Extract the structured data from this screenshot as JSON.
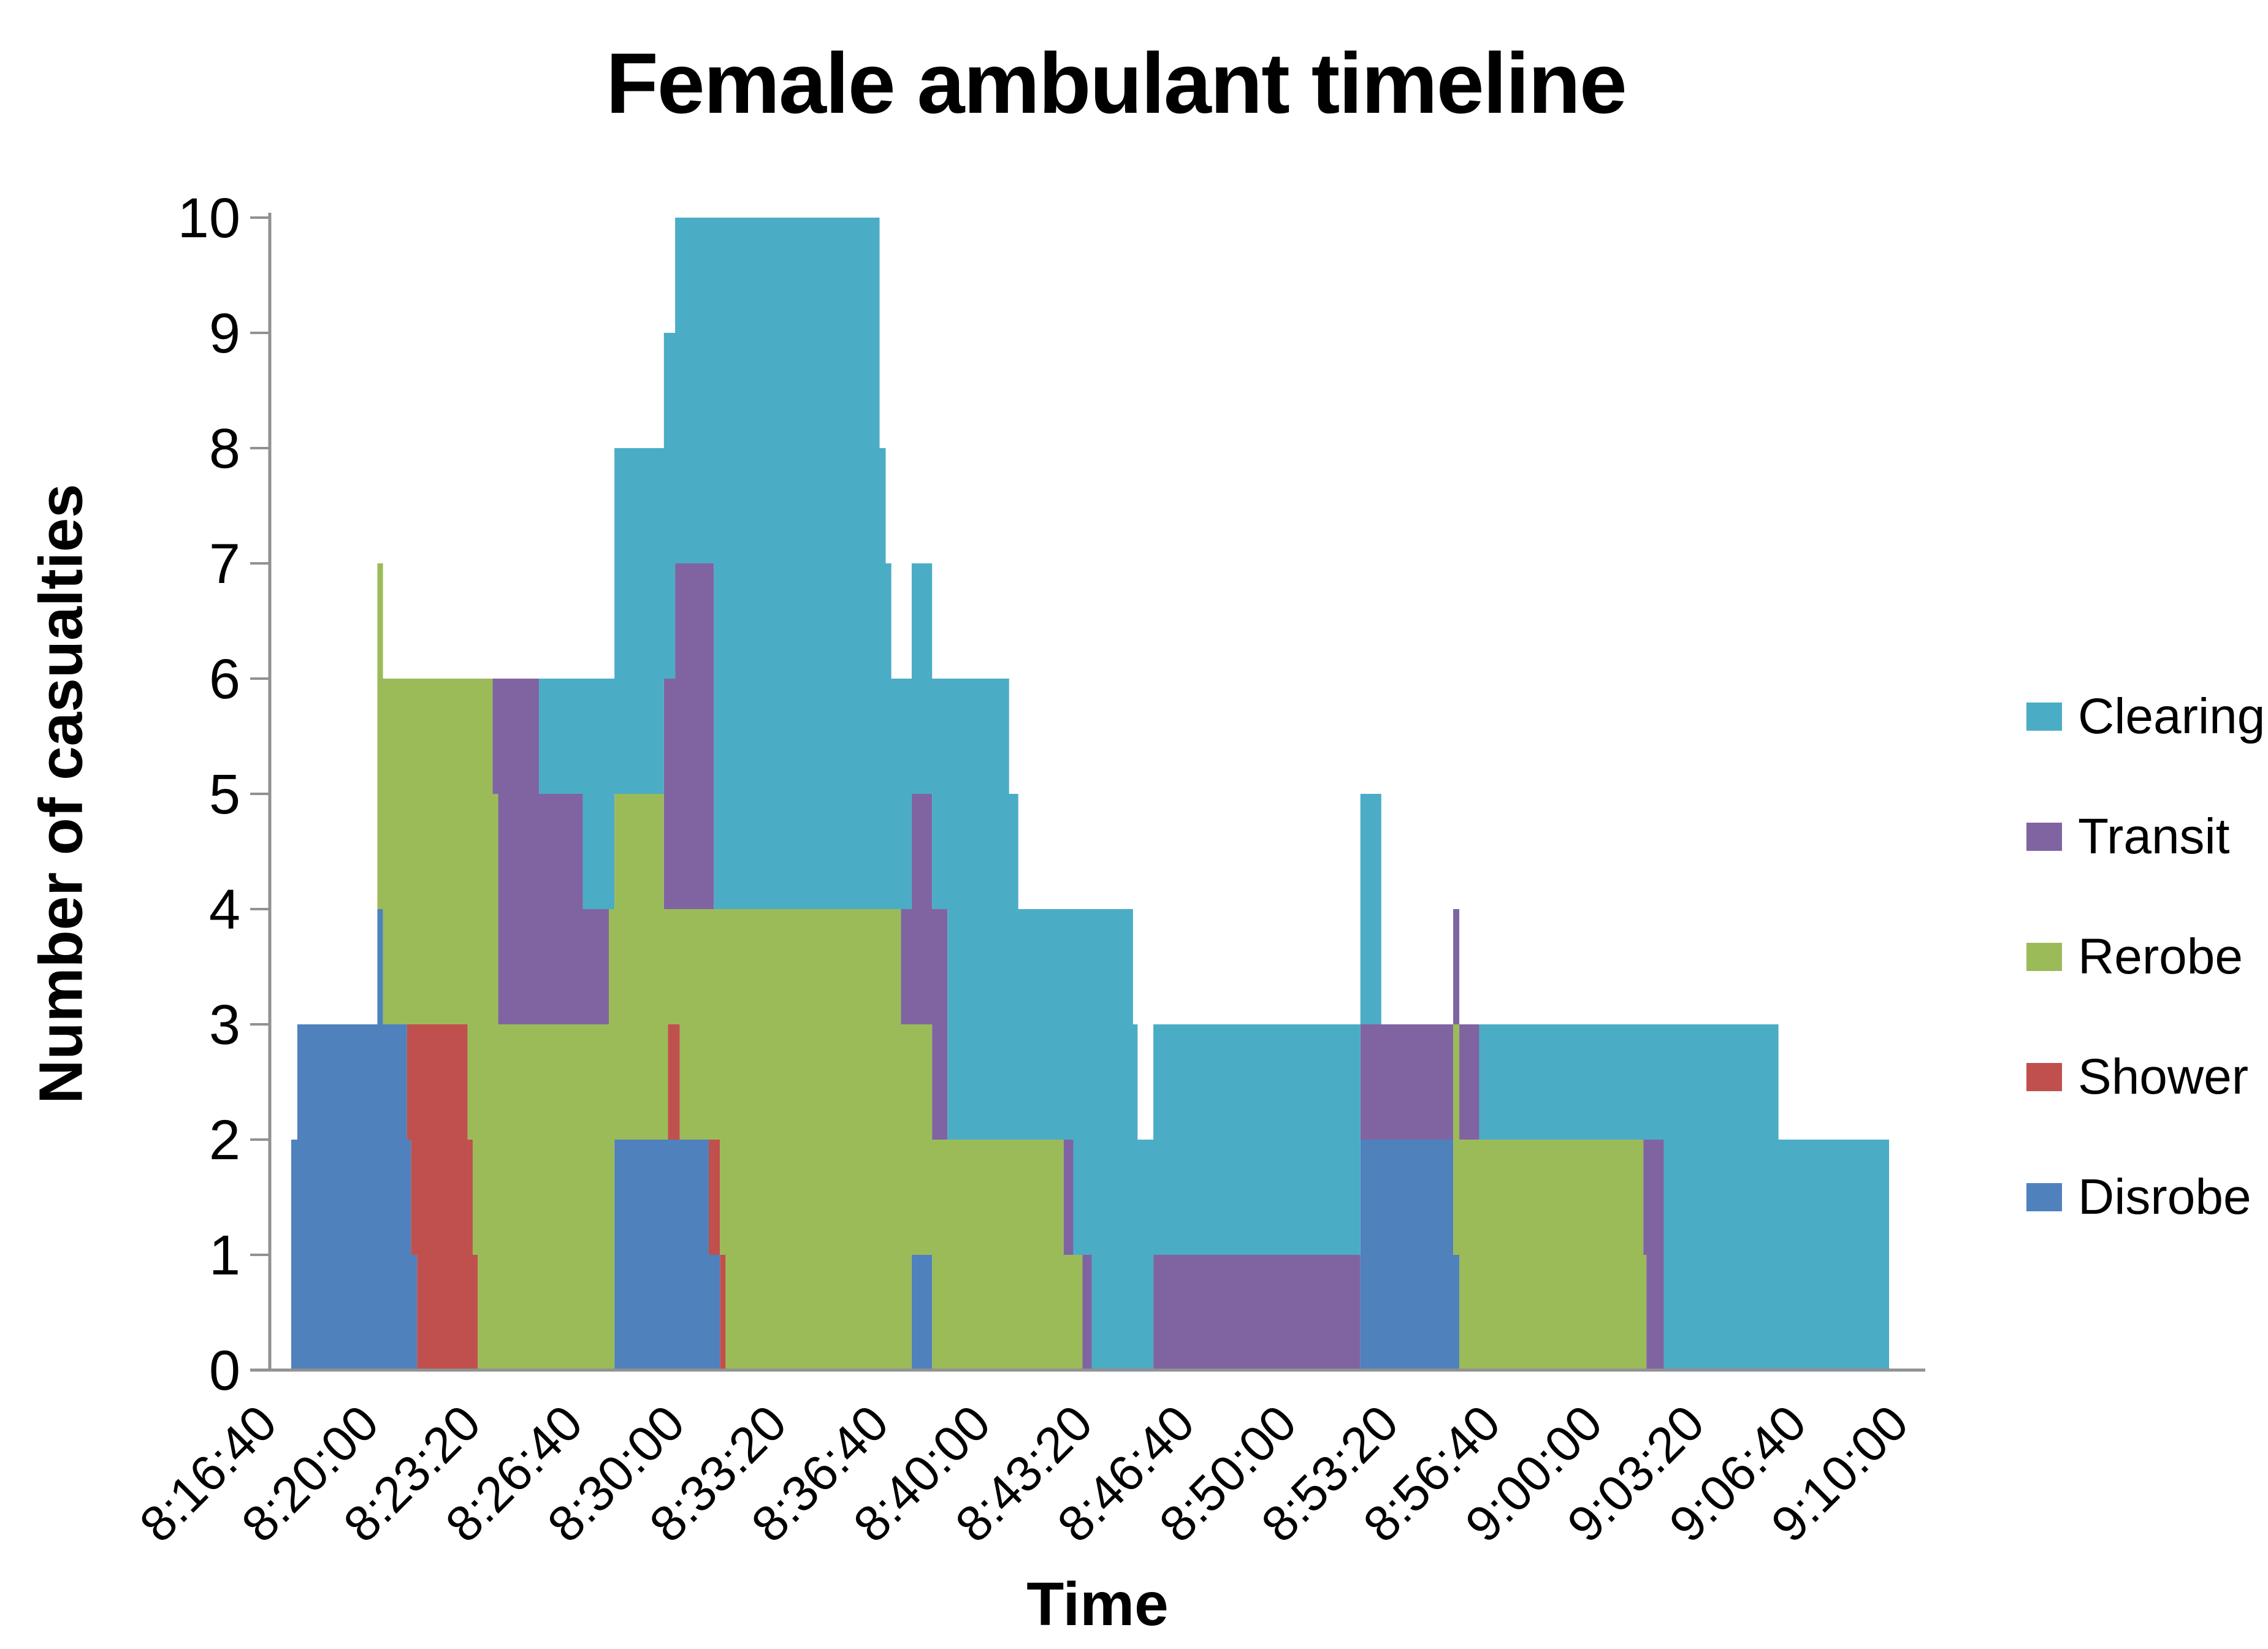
{
  "title": "Female ambulant timeline",
  "y_axis": {
    "label": "Number of casualties",
    "ticks": [
      "0",
      "1",
      "2",
      "3",
      "4",
      "5",
      "6",
      "7",
      "8",
      "9",
      "10"
    ],
    "min": 0,
    "max": 10
  },
  "x_axis": {
    "label": "Time",
    "tick_labels": [
      "8:16:40",
      "8:20:00",
      "8:23:20",
      "8:26:40",
      "8:30:00",
      "8:33:20",
      "8:36:40",
      "8:40:00",
      "8:43:20",
      "8:46:40",
      "8:50:00",
      "8:53:20",
      "8:56:40",
      "9:00:00",
      "9:03:20",
      "9:06:40",
      "9:10:00"
    ]
  },
  "legend": {
    "items": [
      {
        "label": "Clearing",
        "color": "#4BACC6"
      },
      {
        "label": "Transit",
        "color": "#8064A2"
      },
      {
        "label": "Rerobe",
        "color": "#9BBB59"
      },
      {
        "label": "Shower",
        "color": "#C0504D"
      },
      {
        "label": "Disrobe",
        "color": "#4F81BD"
      }
    ]
  },
  "colors": {
    "axis_line": "#919191",
    "tick_mark": "#919191",
    "background": "#FFFFFF"
  },
  "chart_data": {
    "type": "area",
    "stacked": true,
    "title": "Female ambulant timeline",
    "xlabel": "Time",
    "ylabel": "Number of casualties",
    "ylim": [
      0,
      10
    ],
    "grid": false,
    "legend_position": "right",
    "x_axis_seconds_range": [
      0,
      3200
    ],
    "x_tick_interval_seconds": 200,
    "x_tick_labels": [
      "8:16:40",
      "8:20:00",
      "8:23:20",
      "8:26:40",
      "8:30:00",
      "8:33:20",
      "8:36:40",
      "8:40:00",
      "8:43:20",
      "8:46:40",
      "8:50:00",
      "8:53:20",
      "8:56:40",
      "9:00:00",
      "9:03:20",
      "9:06:40",
      "9:10:00"
    ],
    "series_bottom_to_top": [
      "Disrobe",
      "Shower",
      "Rerobe",
      "Transit",
      "Clearing"
    ],
    "series_colors": {
      "Disrobe": "#4F81BD",
      "Shower": "#C0504D",
      "Rerobe": "#9BBB59",
      "Transit": "#8064A2",
      "Clearing": "#4BACC6"
    },
    "events_note": "v = [Disrobe, Shower, Rerobe, Transit, Clearing] casualty counts, effective from time t (seconds after 8:16:40) until the next event; step-wise stacked area",
    "events": [
      {
        "t": 0,
        "time": "8:16:40",
        "v": [
          0,
          0,
          0,
          0,
          0
        ]
      },
      {
        "t": 42,
        "time": "8:17:22",
        "v": [
          2,
          0,
          0,
          0,
          0
        ]
      },
      {
        "t": 54,
        "time": "8:17:34",
        "v": [
          3,
          0,
          0,
          0,
          0
        ]
      },
      {
        "t": 211,
        "time": "8:20:11",
        "v": [
          4,
          0,
          3,
          0,
          0
        ]
      },
      {
        "t": 222,
        "time": "8:20:22",
        "v": [
          3,
          0,
          3,
          0,
          0
        ]
      },
      {
        "t": 269,
        "time": "8:21:09",
        "v": [
          2,
          1,
          3,
          0,
          0
        ]
      },
      {
        "t": 277,
        "time": "8:21:17",
        "v": [
          1,
          2,
          3,
          0,
          0
        ]
      },
      {
        "t": 289,
        "time": "8:21:29",
        "v": [
          0,
          3,
          3,
          0,
          0
        ]
      },
      {
        "t": 388,
        "time": "8:23:08",
        "v": [
          0,
          2,
          4,
          0,
          0
        ]
      },
      {
        "t": 398,
        "time": "8:23:18",
        "v": [
          0,
          1,
          5,
          0,
          0
        ]
      },
      {
        "t": 408,
        "time": "8:23:28",
        "v": [
          0,
          0,
          6,
          0,
          0
        ]
      },
      {
        "t": 437,
        "time": "8:23:57",
        "v": [
          0,
          0,
          5,
          1,
          0
        ]
      },
      {
        "t": 448,
        "time": "8:24:08",
        "v": [
          0,
          0,
          3,
          3,
          0
        ]
      },
      {
        "t": 528,
        "time": "8:25:28",
        "v": [
          0,
          0,
          3,
          2,
          1
        ]
      },
      {
        "t": 614,
        "time": "8:26:54",
        "v": [
          0,
          0,
          3,
          1,
          2
        ]
      },
      {
        "t": 665,
        "time": "8:27:45",
        "v": [
          0,
          0,
          4,
          0,
          2
        ]
      },
      {
        "t": 676,
        "time": "8:27:56",
        "v": [
          2,
          0,
          3,
          0,
          3
        ]
      },
      {
        "t": 773,
        "time": "8:29:33",
        "v": [
          2,
          0,
          2,
          2,
          3
        ]
      },
      {
        "t": 781,
        "time": "8:29:41",
        "v": [
          2,
          1,
          1,
          2,
          3
        ]
      },
      {
        "t": 795,
        "time": "8:29:55",
        "v": [
          2,
          1,
          1,
          3,
          3
        ]
      },
      {
        "t": 804,
        "time": "8:30:04",
        "v": [
          2,
          0,
          2,
          3,
          3
        ]
      },
      {
        "t": 861,
        "time": "8:31:01",
        "v": [
          1,
          1,
          2,
          3,
          3
        ]
      },
      {
        "t": 871,
        "time": "8:31:11",
        "v": [
          1,
          1,
          2,
          0,
          6
        ]
      },
      {
        "t": 883,
        "time": "8:31:23",
        "v": [
          0,
          1,
          3,
          0,
          6
        ]
      },
      {
        "t": 894,
        "time": "8:31:34",
        "v": [
          0,
          0,
          4,
          0,
          6
        ]
      },
      {
        "t": 1196,
        "time": "8:36:36",
        "v": [
          0,
          0,
          4,
          0,
          4
        ]
      },
      {
        "t": 1208,
        "time": "8:36:48",
        "v": [
          0,
          0,
          4,
          0,
          3
        ]
      },
      {
        "t": 1219,
        "time": "8:36:59",
        "v": [
          0,
          0,
          4,
          0,
          2
        ]
      },
      {
        "t": 1238,
        "time": "8:37:18",
        "v": [
          0,
          0,
          3,
          1,
          2
        ]
      },
      {
        "t": 1259,
        "time": "8:37:39",
        "v": [
          1,
          0,
          2,
          2,
          2
        ]
      },
      {
        "t": 1299,
        "time": "8:38:19",
        "v": [
          0,
          0,
          2,
          2,
          2
        ]
      },
      {
        "t": 1329,
        "time": "8:38:49",
        "v": [
          0,
          0,
          2,
          0,
          4
        ]
      },
      {
        "t": 1450,
        "time": "8:40:50",
        "v": [
          0,
          0,
          2,
          0,
          3
        ]
      },
      {
        "t": 1468,
        "time": "8:41:08",
        "v": [
          0,
          0,
          2,
          0,
          2
        ]
      },
      {
        "t": 1557,
        "time": "8:42:37",
        "v": [
          0,
          0,
          1,
          1,
          2
        ]
      },
      {
        "t": 1576,
        "time": "8:42:56",
        "v": [
          0,
          0,
          1,
          0,
          3
        ]
      },
      {
        "t": 1594,
        "time": "8:43:14",
        "v": [
          0,
          0,
          0,
          1,
          3
        ]
      },
      {
        "t": 1612,
        "time": "8:43:32",
        "v": [
          0,
          0,
          0,
          0,
          4
        ]
      },
      {
        "t": 1693,
        "time": "8:44:53",
        "v": [
          0,
          0,
          0,
          0,
          3
        ]
      },
      {
        "t": 1702,
        "time": "8:45:02",
        "v": [
          0,
          0,
          0,
          0,
          2
        ]
      },
      {
        "t": 1733,
        "time": "8:45:33",
        "v": [
          0,
          0,
          0,
          1,
          2
        ]
      },
      {
        "t": 2139,
        "time": "8:52:19",
        "v": [
          2,
          0,
          0,
          1,
          2
        ]
      },
      {
        "t": 2180,
        "time": "8:53:00",
        "v": [
          2,
          0,
          0,
          1,
          0
        ]
      },
      {
        "t": 2321,
        "time": "8:55:21",
        "v": [
          1,
          0,
          2,
          1,
          0
        ]
      },
      {
        "t": 2333,
        "time": "8:55:33",
        "v": [
          0,
          0,
          2,
          1,
          0
        ]
      },
      {
        "t": 2372,
        "time": "8:56:12",
        "v": [
          0,
          0,
          2,
          0,
          1
        ]
      },
      {
        "t": 2694,
        "time": "9:01:34",
        "v": [
          0,
          0,
          1,
          1,
          1
        ]
      },
      {
        "t": 2700,
        "time": "9:01:40",
        "v": [
          0,
          0,
          0,
          2,
          1
        ]
      },
      {
        "t": 2734,
        "time": "9:02:14",
        "v": [
          0,
          0,
          0,
          0,
          3
        ]
      },
      {
        "t": 2959,
        "time": "9:05:59",
        "v": [
          0,
          0,
          0,
          0,
          2
        ]
      },
      {
        "t": 3176,
        "time": "9:09:36",
        "v": [
          0,
          0,
          0,
          0,
          0
        ]
      }
    ]
  }
}
